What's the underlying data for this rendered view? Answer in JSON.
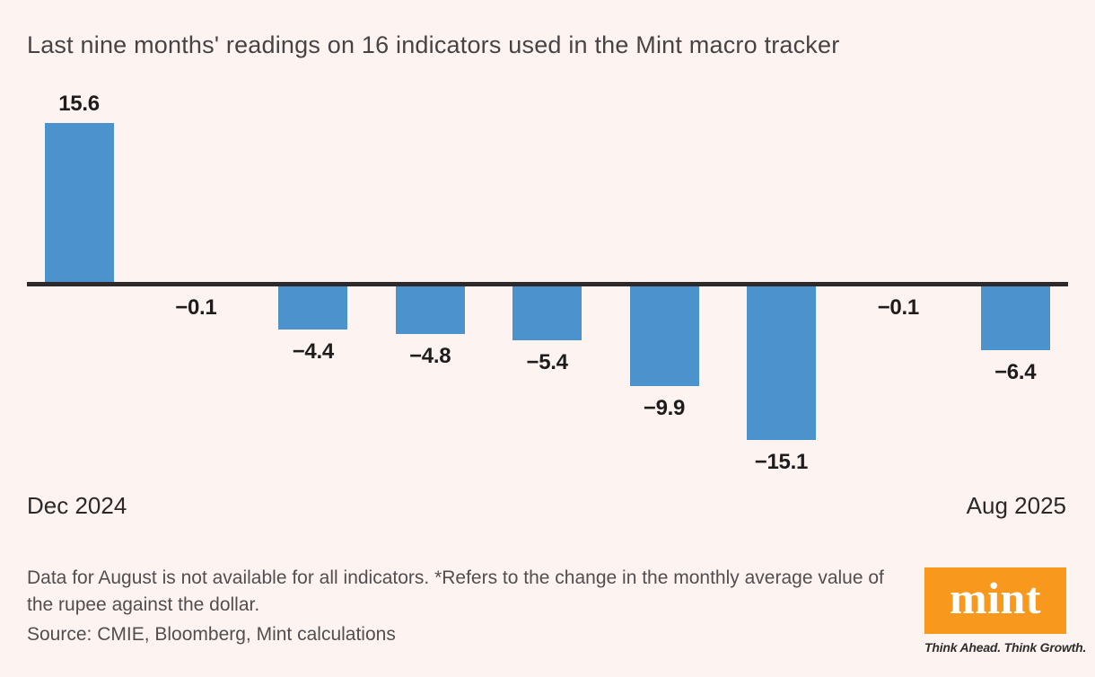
{
  "title": "Last nine months' readings on 16 indicators used in the Mint macro tracker",
  "chart_data": {
    "type": "bar",
    "title": "Last nine months' readings on 16 indicators used in the Mint macro tracker",
    "values": [
      15.6,
      -0.1,
      -4.4,
      -4.8,
      -5.4,
      -9.9,
      -15.1,
      -0.1,
      -6.4
    ],
    "value_labels": [
      "15.6",
      "−0.1",
      "−4.4",
      "−4.8",
      "−5.4",
      "−9.9",
      "−15.1",
      "−0.1",
      "−6.4"
    ],
    "x_axis": {
      "start_label": "Dec 2024",
      "end_label": "Aug 2025"
    },
    "ylim": [
      -16,
      16
    ],
    "grid": false,
    "legend": "none",
    "bar_color": "#4c92cd",
    "axis_color": "#2e2a2b",
    "background_color": "#fdf4f2"
  },
  "footnote": "Data for August is not available for all indicators. *Refers to the change in the monthly average value of the rupee against the dollar.",
  "source": "Source: CMIE, Bloomberg, Mint calculations",
  "logo": {
    "text": "mint",
    "tagline": "Think Ahead. Think Growth.",
    "bg_color": "#f8981d"
  }
}
